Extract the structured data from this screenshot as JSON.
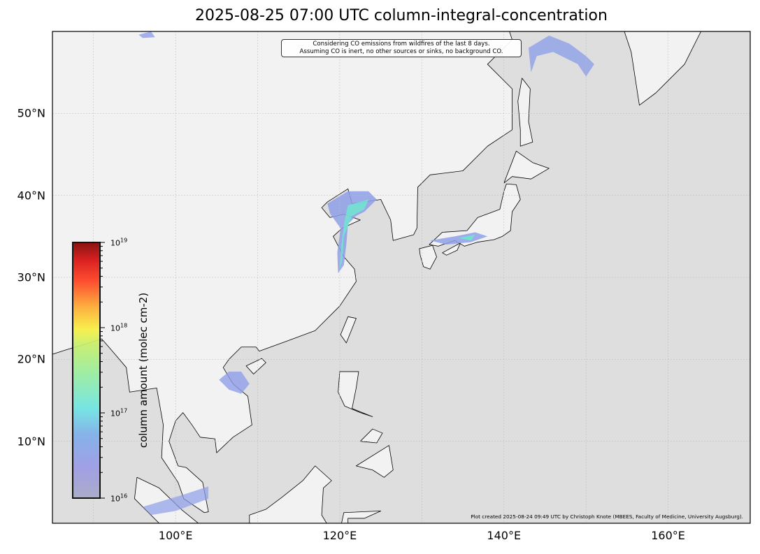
{
  "title": "2025-08-25 07:00 UTC column-integral-concentration",
  "map": {
    "projection": "equirectangular",
    "lon_range": [
      85,
      170
    ],
    "lat_range": [
      0,
      60
    ],
    "land_color": "#f2f2f2",
    "ocean_color": "#dedede",
    "gridlines": true
  },
  "x_ticks": [
    {
      "value": 100,
      "label": "100°E"
    },
    {
      "value": 120,
      "label": "120°E"
    },
    {
      "value": 140,
      "label": "140°E"
    },
    {
      "value": 160,
      "label": "160°E"
    }
  ],
  "y_ticks": [
    {
      "value": 10,
      "label": "10°N"
    },
    {
      "value": 20,
      "label": "20°N"
    },
    {
      "value": 30,
      "label": "30°N"
    },
    {
      "value": 40,
      "label": "40°N"
    },
    {
      "value": 50,
      "label": "50°N"
    }
  ],
  "annotation": {
    "line1": "Considering CO emissions from wildfires of the last 8 days.",
    "line2": "Assuming CO is inert, no other sources or sinks, no background CO."
  },
  "credit": "Plot created 2025-08-24 09:49 UTC by Christoph Knote (MBEES, Faculty of Medicine, University Augsburg).",
  "colorbar": {
    "label": "column amount (molec cm-2)",
    "scale": "log",
    "range": [
      1e+16,
      1e+19
    ],
    "colormap": "jet (semi-transparent)",
    "ticks": [
      {
        "base": "10",
        "exp": "19",
        "value": 1e+19
      },
      {
        "base": "10",
        "exp": "18",
        "value": 1e+18
      },
      {
        "base": "10",
        "exp": "17",
        "value": 1e+17
      },
      {
        "base": "10",
        "exp": "16",
        "value": 1e+16
      }
    ]
  }
}
